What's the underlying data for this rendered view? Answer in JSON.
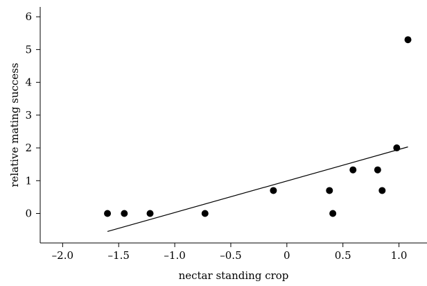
{
  "chart_data": {
    "type": "scatter",
    "title": "",
    "xlabel": "nectar standing crop",
    "ylabel": "relative mating success",
    "xlim": [
      -2.2,
      1.25
    ],
    "ylim": [
      -0.9,
      6.3
    ],
    "xticks": [
      -2.0,
      -1.5,
      -1.0,
      -0.5,
      0,
      0.5,
      1.0
    ],
    "xtick_labels": [
      "–2.0",
      "–1.5",
      "–1.0",
      "–0.5",
      "0",
      "0.5",
      "1.0"
    ],
    "yticks": [
      0,
      1,
      2,
      3,
      4,
      5,
      6
    ],
    "ytick_labels": [
      "0",
      "1",
      "2",
      "3",
      "4",
      "5",
      "6"
    ],
    "grid": false,
    "points": [
      {
        "x": -1.6,
        "y": 0.0
      },
      {
        "x": -1.45,
        "y": 0.0
      },
      {
        "x": -1.22,
        "y": 0.0
      },
      {
        "x": -0.73,
        "y": 0.0
      },
      {
        "x": -0.12,
        "y": 0.7
      },
      {
        "x": 0.38,
        "y": 0.7
      },
      {
        "x": 0.41,
        "y": 0.0
      },
      {
        "x": 0.59,
        "y": 1.33
      },
      {
        "x": 0.81,
        "y": 1.33
      },
      {
        "x": 0.85,
        "y": 0.7
      },
      {
        "x": 0.98,
        "y": 2.0
      },
      {
        "x": 1.08,
        "y": 5.3
      }
    ],
    "trendline": {
      "x": [
        -1.6,
        1.08
      ],
      "y": [
        -0.55,
        2.03
      ]
    }
  }
}
